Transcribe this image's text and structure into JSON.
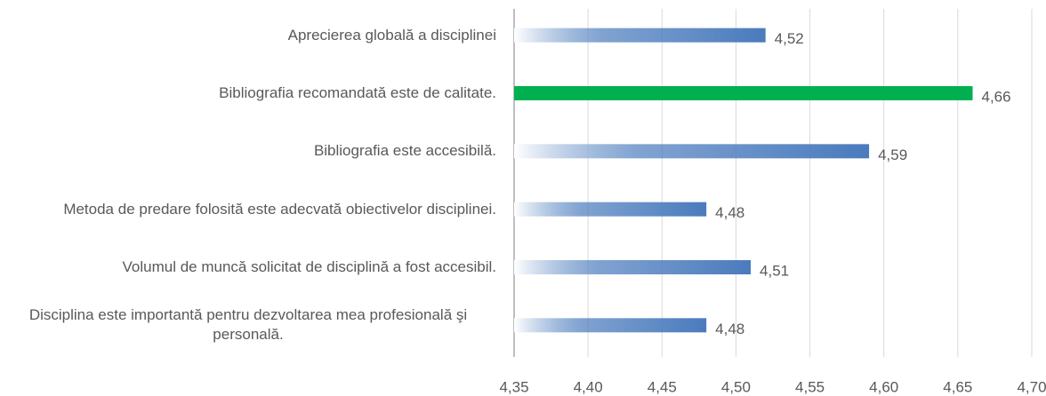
{
  "chart_data": {
    "type": "bar",
    "orientation": "horizontal",
    "categories": [
      "Aprecierea globală a disciplinei",
      "Bibliografia recomandată este de calitate.",
      "Bibliografia este accesibilă.",
      "Metoda de predare folosită este adecvată obiectivelor disciplinei.",
      "Volumul de muncă solicitat de disciplină a fost accesibil.",
      "Disciplina este importantă pentru dezvoltarea mea profesională şi personală."
    ],
    "values": [
      4.52,
      4.66,
      4.59,
      4.48,
      4.51,
      4.48
    ],
    "value_labels": [
      "4,52",
      "4,66",
      "4,59",
      "4,48",
      "4,51",
      "4,48"
    ],
    "colors": [
      "#4a7bbd",
      "#00b050",
      "#4a7bbd",
      "#4a7bbd",
      "#4a7bbd",
      "#4a7bbd"
    ],
    "xlim": [
      4.35,
      4.7
    ],
    "xticks": [
      {
        "value": 4.35,
        "label": "4,35"
      },
      {
        "value": 4.4,
        "label": "4,40"
      },
      {
        "value": 4.45,
        "label": "4,45"
      },
      {
        "value": 4.5,
        "label": "4,50"
      },
      {
        "value": 4.55,
        "label": "4,55"
      },
      {
        "value": 4.6,
        "label": "4,60"
      },
      {
        "value": 4.65,
        "label": "4,65"
      },
      {
        "value": 4.7,
        "label": "4,70"
      }
    ],
    "grid": true
  }
}
